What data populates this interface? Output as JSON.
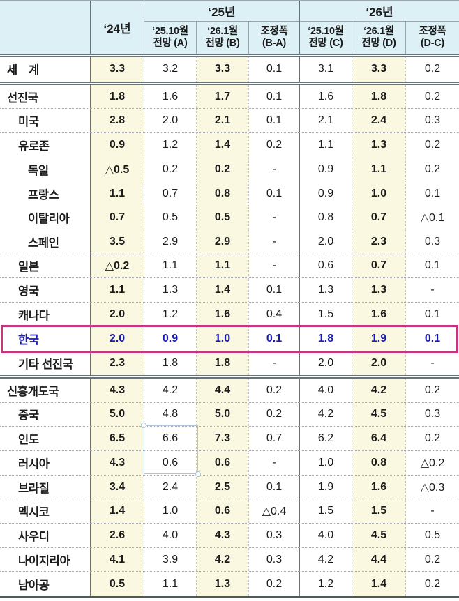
{
  "colors": {
    "header_bg": "#dcf0f5",
    "band_bg": "#faf8e0",
    "highlight_border": "#c6357f",
    "highlight_text": "#1a1ab2",
    "rule_dark": "#68747a",
    "grid_light": "#c2c6c8",
    "selection_stroke": "#a9c6de"
  },
  "chart_data": {
    "type": "table",
    "header": {
      "year24": "‘24년",
      "groups": [
        {
          "label": "‘25년",
          "subcols": [
            {
              "line1": "‘25.10월",
              "line2": "전망 (A)"
            },
            {
              "line1": "‘26.1월",
              "line2": "전망 (B)"
            },
            {
              "line1": "조정폭",
              "line2": "(B-A)"
            }
          ]
        },
        {
          "label": "‘26년",
          "subcols": [
            {
              "line1": "‘25.10월",
              "line2": "전망 (C)"
            },
            {
              "line1": "‘26.1월",
              "line2": "전망 (D)"
            },
            {
              "line1": "조정폭",
              "line2": "(D-C)"
            }
          ]
        }
      ]
    },
    "rows": [
      {
        "label": "세　계",
        "indent": 0,
        "sep": "double",
        "values": [
          "3.3",
          "3.2",
          "3.3",
          "0.1",
          "3.1",
          "3.3",
          "0.2"
        ]
      },
      {
        "label": "선진국",
        "indent": 0,
        "sep": "dotted",
        "values": [
          "1.8",
          "1.6",
          "1.7",
          "0.1",
          "1.6",
          "1.8",
          "0.2"
        ]
      },
      {
        "label": "미국",
        "indent": 1,
        "sep": "dotted",
        "values": [
          "2.8",
          "2.0",
          "2.1",
          "0.1",
          "2.1",
          "2.4",
          "0.3"
        ]
      },
      {
        "label": "유로존",
        "indent": 1,
        "sep": "none",
        "values": [
          "0.9",
          "1.2",
          "1.4",
          "0.2",
          "1.1",
          "1.3",
          "0.2"
        ]
      },
      {
        "label": "독일",
        "indent": 2,
        "sep": "none",
        "values": [
          "△0.5",
          "0.2",
          "0.2",
          "-",
          "0.9",
          "1.1",
          "0.2"
        ]
      },
      {
        "label": "프랑스",
        "indent": 2,
        "sep": "none",
        "values": [
          "1.1",
          "0.7",
          "0.8",
          "0.1",
          "0.9",
          "1.0",
          "0.1"
        ]
      },
      {
        "label": "이탈리아",
        "indent": 2,
        "sep": "none",
        "values": [
          "0.7",
          "0.5",
          "0.5",
          "-",
          "0.8",
          "0.7",
          "△0.1"
        ]
      },
      {
        "label": "스페인",
        "indent": 2,
        "sep": "dotted",
        "values": [
          "3.5",
          "2.9",
          "2.9",
          "-",
          "2.0",
          "2.3",
          "0.3"
        ]
      },
      {
        "label": "일본",
        "indent": 1,
        "sep": "dotted",
        "values": [
          "△0.2",
          "1.1",
          "1.1",
          "-",
          "0.6",
          "0.7",
          "0.1"
        ]
      },
      {
        "label": "영국",
        "indent": 1,
        "sep": "dotted",
        "values": [
          "1.1",
          "1.3",
          "1.4",
          "0.1",
          "1.3",
          "1.3",
          "-"
        ]
      },
      {
        "label": "캐나다",
        "indent": 1,
        "sep": "none",
        "values": [
          "2.0",
          "1.2",
          "1.6",
          "0.4",
          "1.5",
          "1.6",
          "0.1"
        ]
      },
      {
        "label": "한국",
        "indent": 1,
        "sep": "none",
        "highlight": true,
        "values": [
          "2.0",
          "0.9",
          "1.0",
          "0.1",
          "1.8",
          "1.9",
          "0.1"
        ]
      },
      {
        "label": "기타 선진국",
        "indent": 1,
        "sep": "double",
        "values": [
          "2.3",
          "1.8",
          "1.8",
          "-",
          "2.0",
          "2.0",
          "-"
        ]
      },
      {
        "label": "신흥개도국",
        "indent": 0,
        "sep": "dotted",
        "values": [
          "4.3",
          "4.2",
          "4.4",
          "0.2",
          "4.0",
          "4.2",
          "0.2"
        ]
      },
      {
        "label": "중국",
        "indent": 1,
        "sep": "dotted",
        "values": [
          "5.0",
          "4.8",
          "5.0",
          "0.2",
          "4.2",
          "4.5",
          "0.3"
        ]
      },
      {
        "label": "인도",
        "indent": 1,
        "sep": "dotted",
        "values": [
          "6.5",
          "6.6",
          "7.3",
          "0.7",
          "6.2",
          "6.4",
          "0.2"
        ]
      },
      {
        "label": "러시아",
        "indent": 1,
        "sep": "dotted",
        "values": [
          "4.3",
          "0.6",
          "0.6",
          "-",
          "1.0",
          "0.8",
          "△0.2"
        ]
      },
      {
        "label": "브라질",
        "indent": 1,
        "sep": "dotted",
        "values": [
          "3.4",
          "2.4",
          "2.5",
          "0.1",
          "1.9",
          "1.6",
          "△0.3"
        ]
      },
      {
        "label": "멕시코",
        "indent": 1,
        "sep": "dotted",
        "values": [
          "1.4",
          "1.0",
          "0.6",
          "△0.4",
          "1.5",
          "1.5",
          "-"
        ]
      },
      {
        "label": "사우디",
        "indent": 1,
        "sep": "dotted",
        "values": [
          "2.6",
          "4.0",
          "4.3",
          "0.3",
          "4.0",
          "4.5",
          "0.5"
        ]
      },
      {
        "label": "나이지리아",
        "indent": 1,
        "sep": "dotted",
        "values": [
          "4.1",
          "3.9",
          "4.2",
          "0.3",
          "4.2",
          "4.4",
          "0.2"
        ]
      },
      {
        "label": "남아공",
        "indent": 1,
        "sep": "none",
        "values": [
          "0.5",
          "1.1",
          "1.3",
          "0.2",
          "1.2",
          "1.4",
          "0.2"
        ]
      }
    ]
  },
  "annotations": {
    "selection_box": {
      "target_column": "‘25.10월 전망 (A)",
      "target_rows": [
        "인도",
        "러시아"
      ]
    }
  }
}
